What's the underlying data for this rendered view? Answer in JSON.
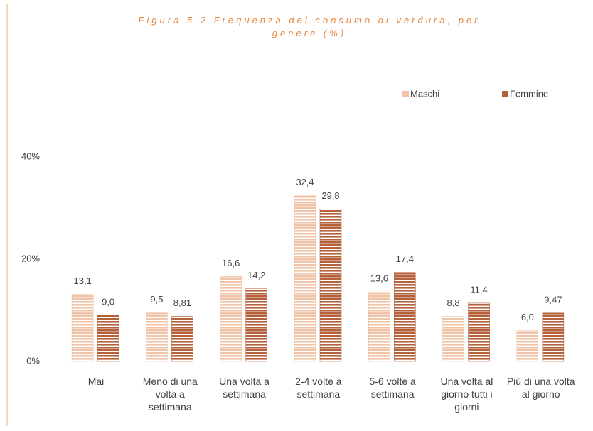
{
  "chart_data": {
    "type": "bar",
    "title": "Figura 5.2 Frequenza del consumo di verdura, per genere (%)",
    "categories": [
      "Mai",
      "Meno di una volta a settimana",
      "Una volta a settimana",
      "2-4 volte a settimana",
      "5-6 volte a settimana",
      "Una volta al giorno tutti i giorni",
      "Più di una volta al giorno"
    ],
    "series": [
      {
        "name": "Maschi",
        "color": "#f0c4a8",
        "values": [
          13.1,
          9.5,
          16.6,
          32.4,
          13.6,
          8.8,
          6.0
        ],
        "value_labels": [
          "13,1",
          "9,5",
          "16,6",
          "32,4",
          "13,6",
          "8,8",
          "6,0"
        ]
      },
      {
        "name": "Femmine",
        "color": "#b5623c",
        "values": [
          9.0,
          8.81,
          14.2,
          29.8,
          17.4,
          11.4,
          9.47
        ],
        "value_labels": [
          "9,0",
          "8,81",
          "14,2",
          "29,8",
          "17,4",
          "11,4",
          "9,47"
        ]
      }
    ],
    "ylim": [
      0,
      40
    ],
    "yticks": [
      {
        "value": 0,
        "label": "0%"
      },
      {
        "value": 20,
        "label": "20%"
      },
      {
        "value": 40,
        "label": "40%"
      }
    ],
    "grid": false,
    "legend": "top-right"
  }
}
